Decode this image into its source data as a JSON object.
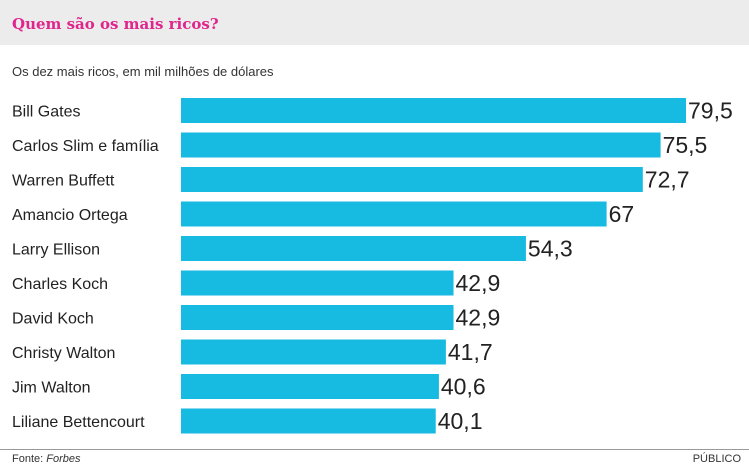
{
  "header": {
    "title": "Quem são os mais ricos?"
  },
  "subtitle": "Os dez mais ricos, em mil milhões de dólares",
  "footer": {
    "source_prefix": "Fonte: ",
    "source_name": "Forbes",
    "brand": "PÚBLICO"
  },
  "colors": {
    "bar": "#17bae0",
    "title": "#e0258c",
    "header_bg": "#ececec"
  },
  "chart_data": {
    "type": "bar",
    "orientation": "horizontal",
    "title": "Quem são os mais ricos?",
    "subtitle": "Os dez mais ricos, em mil milhões de dólares",
    "categories": [
      "Bill Gates",
      "Carlos Slim e família",
      "Warren Buffett",
      "Amancio Ortega",
      "Larry Ellison",
      "Charles Koch",
      "David Koch",
      "Christy Walton",
      "Jim Walton",
      "Liliane Bettencourt"
    ],
    "values": [
      79.5,
      75.5,
      72.7,
      67,
      54.3,
      42.9,
      42.9,
      41.7,
      40.6,
      40.1
    ],
    "value_labels": [
      "79,5",
      "75,5",
      "72,7",
      "67",
      "54,3",
      "42,9",
      "42,9",
      "41,7",
      "40,6",
      "40,1"
    ],
    "xlim": [
      0,
      79.5
    ],
    "grid": false,
    "legend": "none"
  }
}
